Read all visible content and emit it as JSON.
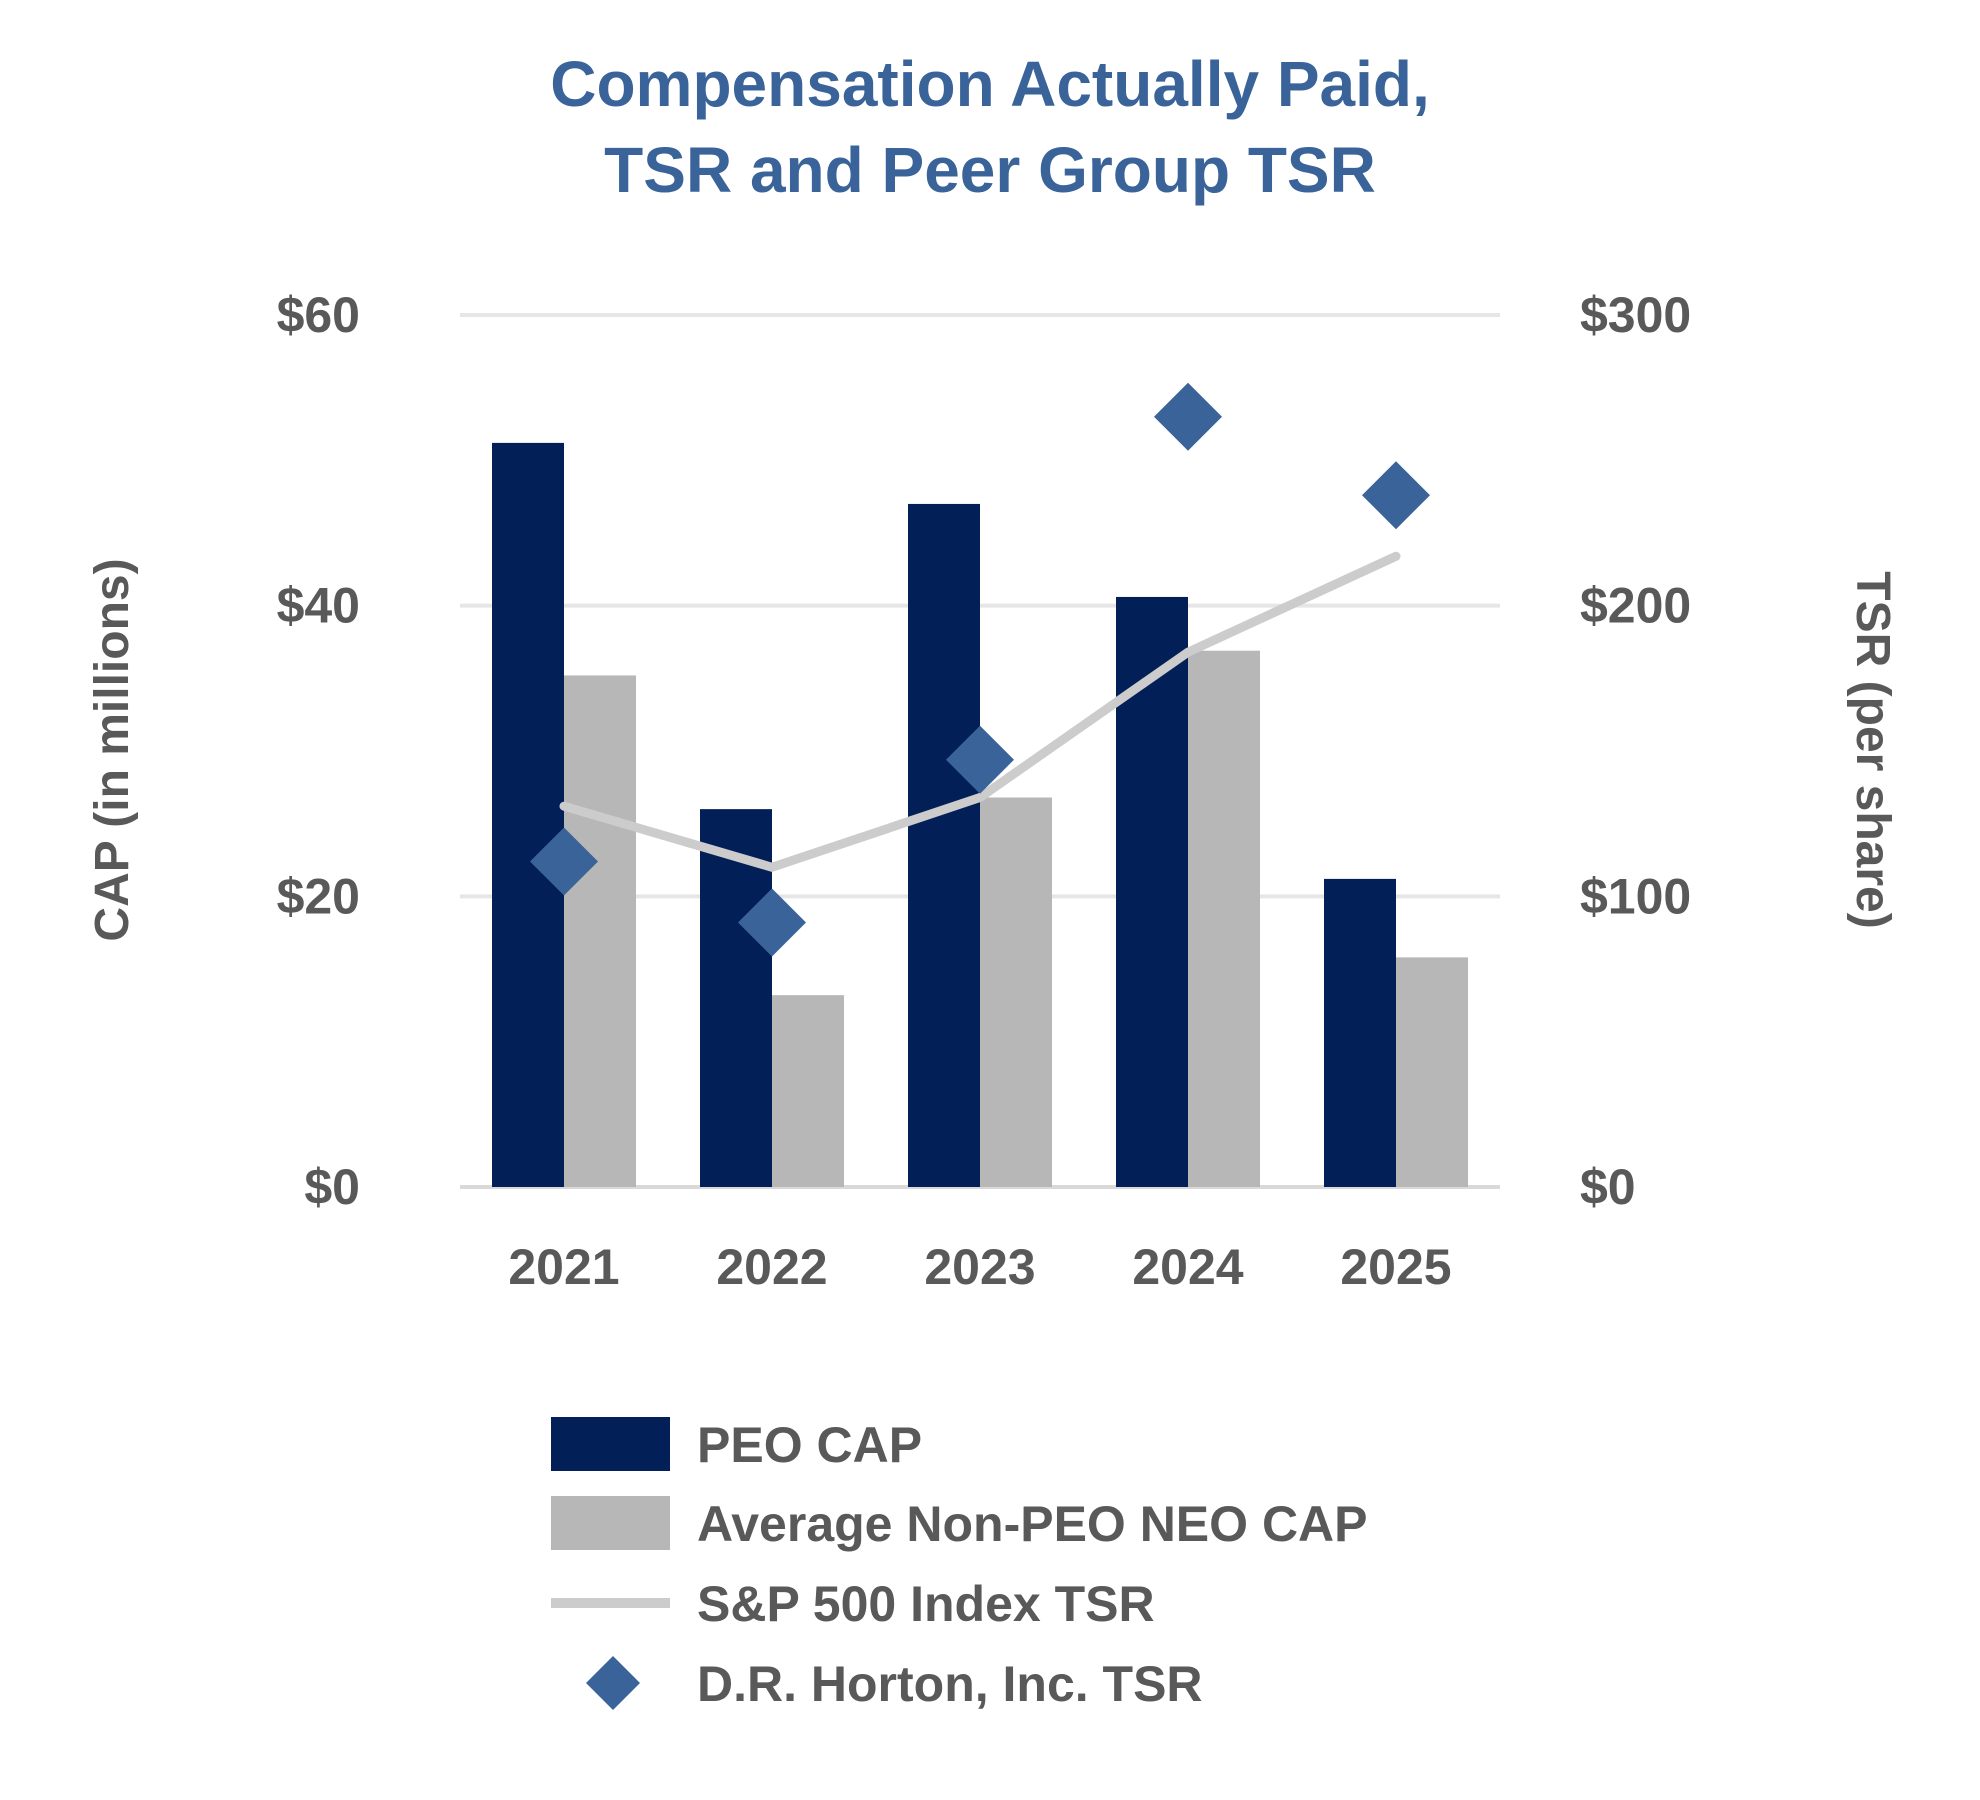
{
  "chart_data": {
    "type": "bar",
    "title_lines": [
      "Compensation Actually Paid,",
      "TSR and Peer Group TSR"
    ],
    "categories": [
      "2021",
      "2022",
      "2023",
      "2024",
      "2025"
    ],
    "y_left": {
      "label": "CAP (in millions)",
      "ticks": [
        0,
        20,
        40,
        60
      ],
      "tick_labels": [
        "$0",
        "$20",
        "$40",
        "$60"
      ],
      "range": [
        0,
        60
      ]
    },
    "y_right": {
      "label": "TSR (per share)",
      "ticks": [
        0,
        100,
        200,
        300
      ],
      "tick_labels": [
        "$0",
        "$100",
        "$200",
        "$300"
      ],
      "range": [
        0,
        300
      ]
    },
    "grid": true,
    "legend_position": "bottom",
    "series": [
      {
        "name": "PEO CAP",
        "kind": "bar",
        "axis": "left",
        "color": "#021f57",
        "values": [
          51.2,
          26.0,
          47.0,
          40.6,
          21.2
        ]
      },
      {
        "name": "Average Non-PEO NEO CAP",
        "kind": "bar",
        "axis": "left",
        "color": "#b7b7b7",
        "values": [
          35.2,
          13.2,
          26.8,
          36.9,
          15.8
        ]
      },
      {
        "name": "S&P 500 Index TSR",
        "kind": "line",
        "axis": "right",
        "color": "#cccccc",
        "values": [
          131,
          110,
          134,
          184,
          217
        ]
      },
      {
        "name": "D.R. Horton, Inc. TSR",
        "kind": "scatter",
        "axis": "right",
        "color": "#3a6399",
        "marker": "diamond",
        "values": [
          112,
          91,
          147,
          265,
          238
        ]
      }
    ]
  }
}
